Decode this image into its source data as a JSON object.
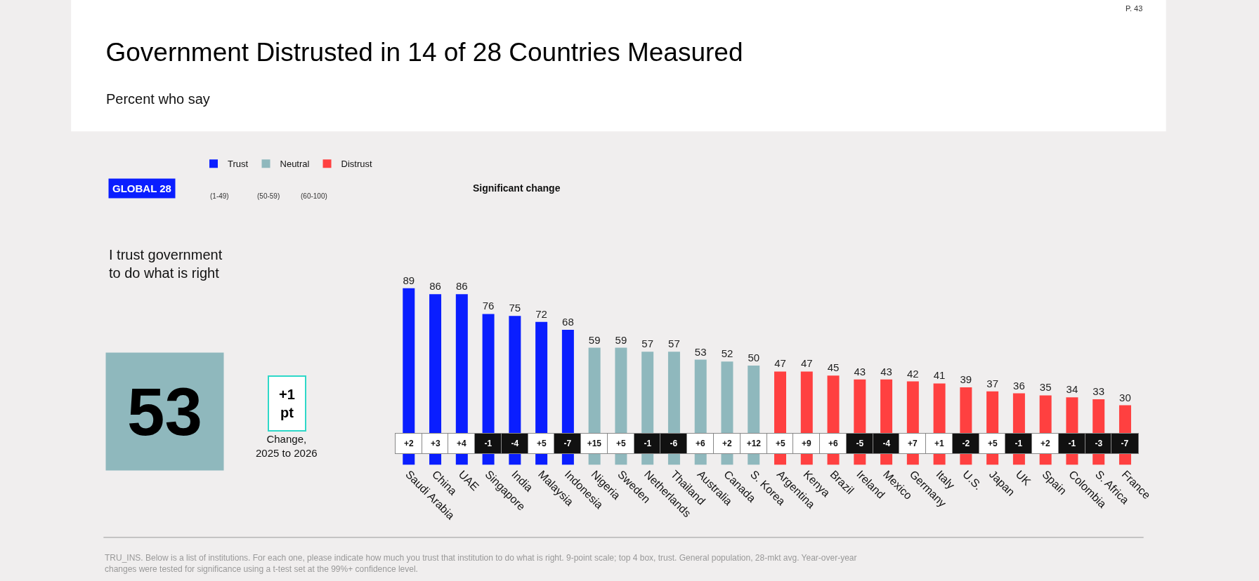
{
  "chart_data": {
    "type": "bar",
    "title": "Government Distrusted in 14 of 28 Countries Measured",
    "subtitle": "Percent who say",
    "categories": [
      "Saudi Arabia",
      "China",
      "UAE",
      "Singapore",
      "India",
      "Malaysia",
      "Indonesia",
      "Nigeria",
      "Sweden",
      "Netherlands",
      "Thailand",
      "Australia",
      "Canada",
      "S. Korea",
      "Argentina",
      "Kenya",
      "Brazil",
      "Ireland",
      "Mexico",
      "Germany",
      "Italy",
      "U.S.",
      "Japan",
      "UK",
      "Spain",
      "Colombia",
      "S. Africa",
      "France"
    ],
    "series": [
      {
        "name": "Distrust",
        "color": "#ff4040",
        "values": [
          null,
          null,
          null,
          null,
          null,
          null,
          null,
          null,
          null,
          null,
          null,
          null,
          null,
          null,
          47,
          47,
          45,
          43,
          43,
          42,
          41,
          39,
          37,
          36,
          35,
          34,
          33,
          30
        ]
      },
      {
        "name": "Neutral",
        "color": "#8fb8bd",
        "values": [
          null,
          null,
          null,
          null,
          null,
          null,
          null,
          59,
          59,
          57,
          57,
          53,
          52,
          50,
          null,
          null,
          null,
          null,
          null,
          null,
          null,
          null,
          null,
          null,
          null,
          null,
          null,
          null
        ]
      },
      {
        "name": "Trust",
        "color": "#0a1eff",
        "values": [
          89,
          86,
          86,
          76,
          75,
          72,
          68,
          null,
          null,
          null,
          null,
          null,
          null,
          null,
          null,
          null,
          null,
          null,
          null,
          null,
          null,
          null,
          null,
          null,
          null,
          null,
          null,
          null
        ]
      }
    ],
    "data_labels": true,
    "legend": "top left",
    "annotations": [
      "P. 43",
      "GLOBAL 28",
      "(1-49)",
      "(50-59)",
      "(60-100)",
      "Significant change",
      "I trust government\nto do what is right",
      "53",
      "+1\npt",
      "Change,\n2025 to 2026",
      "TRU_INS. Below is a list of institutions. For each one, please indicate how much you trust that institution to do what is right. 9-point scale; top 4 box, trust. General population, 28-mkt avg. Year-over-year\nchanges were tested for significance using a t-test set at the 99%+ confidence level.",
      "+2",
      "+3",
      "+4",
      "-1",
      "-4",
      "+5",
      "-7",
      "+15",
      "+5",
      "-1",
      "-6",
      "+6",
      "+2",
      "+12",
      "+5",
      "+9",
      "+6",
      "-5",
      "-4",
      "+7",
      "+1",
      "-2",
      "+5",
      "-1",
      "+2",
      "-1",
      "-3",
      "-7"
    ]
  }
}
